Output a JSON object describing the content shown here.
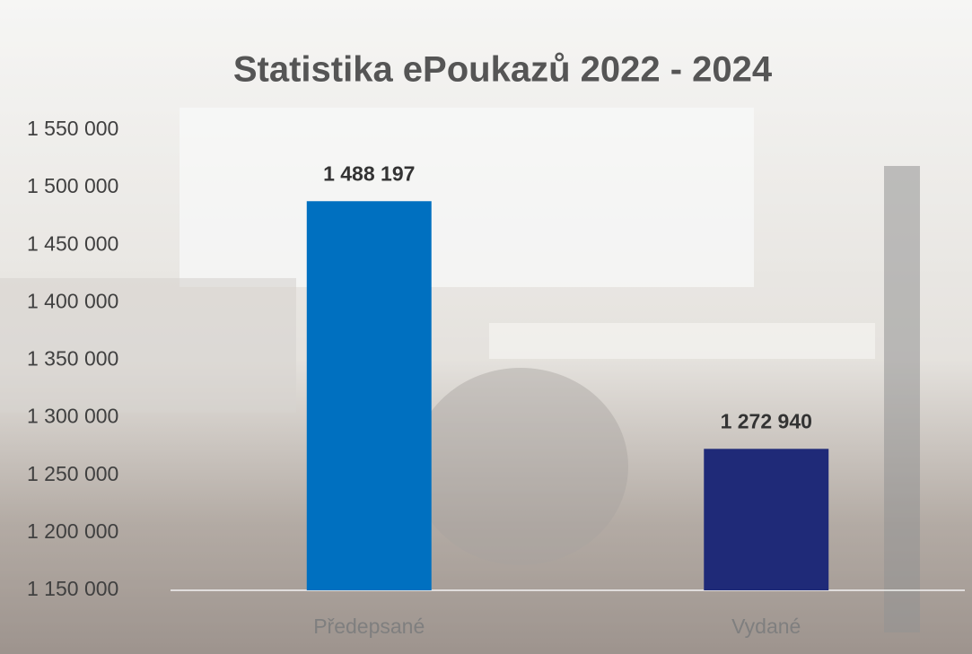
{
  "chart_data": {
    "type": "bar",
    "title": "Statistika ePoukazů 2022 - 2024",
    "categories": [
      "Předepsané",
      "Vydané"
    ],
    "values": [
      1488197,
      1272940
    ],
    "value_labels": [
      "1 488 197",
      "1 272 940"
    ],
    "colors": [
      "#0070c0",
      "#1f2a78"
    ],
    "ylim": [
      1150000,
      1550000
    ],
    "yticks": [
      {
        "value": 1150000,
        "label": "1 150 000"
      },
      {
        "value": 1200000,
        "label": "1 200 000"
      },
      {
        "value": 1250000,
        "label": "1 250 000"
      },
      {
        "value": 1300000,
        "label": "1 300 000"
      },
      {
        "value": 1350000,
        "label": "1 350 000"
      },
      {
        "value": 1400000,
        "label": "1 400 000"
      },
      {
        "value": 1450000,
        "label": "1 450 000"
      },
      {
        "value": 1500000,
        "label": "1 500 000"
      },
      {
        "value": 1550000,
        "label": "1 550 000"
      }
    ],
    "grid": false
  }
}
